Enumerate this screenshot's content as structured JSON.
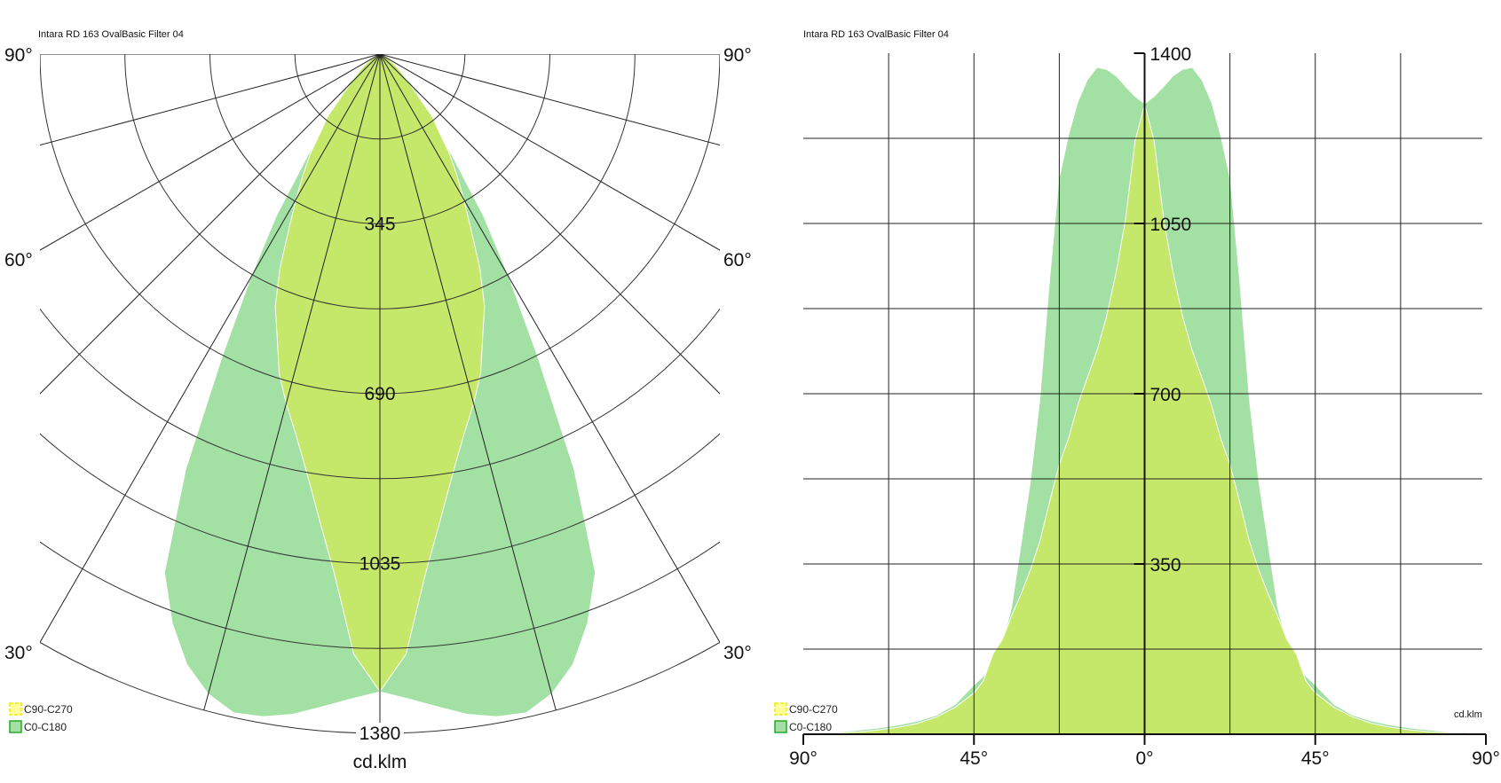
{
  "colors": {
    "c0_c180": "#a3e0a3",
    "c90_c270": "#c5e86a",
    "grid": "#222222",
    "legend_yellow": "#ffff99",
    "legend_yellow_border": "#f0e800",
    "legend_green_border": "#2aa52a"
  },
  "chart_data": [
    {
      "type": "polar-area",
      "title": "Intara RD 163 OvalBasic Filter 04",
      "unit_label": "cd.klm",
      "radial_range": [
        0,
        1380
      ],
      "radial_ticks": [
        345,
        690,
        1035,
        1380
      ],
      "angle_labels": {
        "left": [
          "90°",
          "60°",
          "30°"
        ],
        "right": [
          "90°",
          "60°",
          "30°"
        ]
      },
      "legend": [
        {
          "name": "C90-C270"
        },
        {
          "name": "C0-C180"
        }
      ],
      "legend_placement": "bottom-left",
      "symmetric": true,
      "angles_deg": [
        0,
        2.5,
        5,
        7.5,
        10,
        12.5,
        15,
        17.5,
        20,
        22.5,
        25,
        27.5,
        30,
        32.5,
        35,
        37.5,
        40,
        42.5,
        45,
        50,
        55,
        60,
        65,
        70,
        75,
        80,
        85,
        90
      ],
      "series": [
        {
          "name": "C0-C180",
          "values": [
            1295,
            1310,
            1330,
            1352,
            1366,
            1370,
            1345,
            1300,
            1230,
            1140,
            930,
            690,
            520,
            390,
            260,
            185,
            140,
            118,
            100,
            60,
            38,
            26,
            18,
            12,
            8,
            4,
            2,
            0
          ]
        },
        {
          "name": "C90-C270",
          "values": [
            1295,
            1220,
            1060,
            950,
            860,
            790,
            735,
            680,
            610,
            555,
            480,
            400,
            340,
            290,
            245,
            195,
            165,
            110,
            85,
            55,
            35,
            22,
            14,
            9,
            5,
            3,
            1,
            0
          ]
        }
      ]
    },
    {
      "type": "area",
      "title": "Intara RD 163 OvalBasic Filter 04",
      "unit_label": "cd.klm",
      "xlim": [
        -90,
        90
      ],
      "ylim": [
        0,
        1400
      ],
      "x_tick_labels": [
        "90°",
        "45°",
        "0°",
        "45°",
        "90°"
      ],
      "y_tick_labels": [
        "1400",
        "1050",
        "700",
        "350"
      ],
      "grid": true,
      "legend": [
        {
          "name": "C90-C270"
        },
        {
          "name": "C0-C180"
        }
      ],
      "legend_placement": "bottom-left",
      "symmetric": true,
      "angles_deg": [
        0,
        2.5,
        5,
        7.5,
        10,
        12.5,
        15,
        17.5,
        20,
        22.5,
        25,
        27.5,
        30,
        32.5,
        35,
        37.5,
        40,
        42.5,
        45,
        50,
        55,
        60,
        65,
        70,
        75,
        80,
        85,
        90
      ],
      "series": [
        {
          "name": "C0-C180",
          "values": [
            1295,
            1310,
            1330,
            1352,
            1366,
            1370,
            1345,
            1300,
            1230,
            1140,
            930,
            690,
            520,
            390,
            260,
            185,
            140,
            118,
            100,
            60,
            38,
            26,
            18,
            12,
            8,
            4,
            2,
            0
          ]
        },
        {
          "name": "C90-C270",
          "values": [
            1295,
            1220,
            1060,
            950,
            860,
            790,
            735,
            680,
            610,
            555,
            480,
            400,
            340,
            290,
            245,
            195,
            165,
            110,
            85,
            55,
            35,
            22,
            14,
            9,
            5,
            3,
            1,
            0
          ]
        }
      ]
    }
  ]
}
